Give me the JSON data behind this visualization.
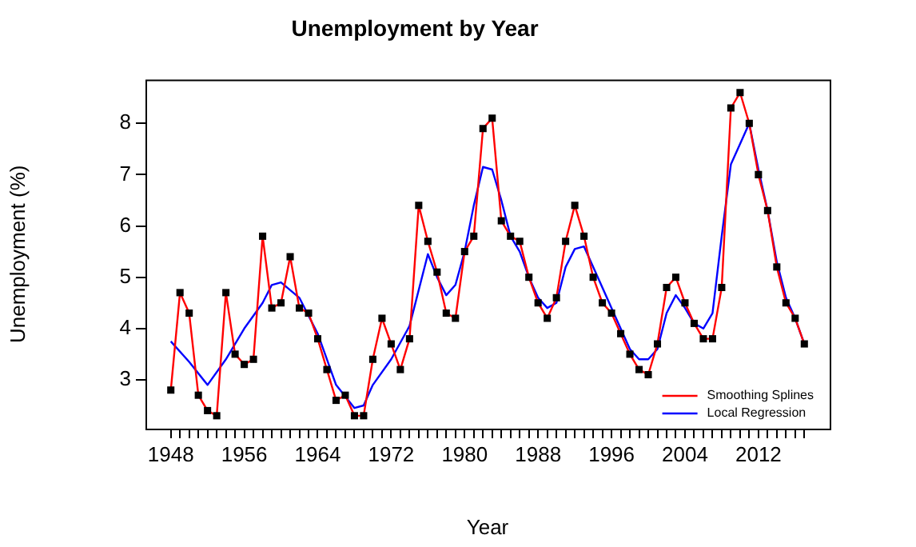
{
  "chart_data": {
    "type": "line",
    "title": "Unemployment by Year",
    "xlabel": "Year",
    "ylabel": "Unemployment (%)",
    "x": [
      1948,
      1949,
      1950,
      1951,
      1952,
      1953,
      1954,
      1955,
      1956,
      1957,
      1958,
      1959,
      1960,
      1961,
      1962,
      1963,
      1964,
      1965,
      1966,
      1967,
      1968,
      1969,
      1970,
      1971,
      1972,
      1973,
      1974,
      1975,
      1976,
      1977,
      1978,
      1979,
      1980,
      1981,
      1982,
      1983,
      1984,
      1985,
      1986,
      1987,
      1988,
      1989,
      1990,
      1991,
      1992,
      1993,
      1994,
      1995,
      1996,
      1997,
      1998,
      1999,
      2000,
      2001,
      2002,
      2003,
      2004,
      2005,
      2006,
      2007,
      2008,
      2009,
      2010,
      2011,
      2012,
      2013,
      2014,
      2015,
      2016,
      2017
    ],
    "series": [
      {
        "type": "scatter",
        "color": "#000000",
        "marker": "square",
        "values": [
          2.8,
          4.7,
          4.3,
          2.7,
          2.4,
          2.3,
          4.7,
          3.5,
          3.3,
          3.4,
          5.8,
          4.4,
          4.5,
          5.4,
          4.4,
          4.3,
          3.8,
          3.2,
          2.6,
          2.7,
          2.3,
          2.3,
          3.4,
          4.2,
          3.7,
          3.2,
          3.8,
          6.4,
          5.7,
          5.1,
          4.3,
          4.2,
          5.5,
          5.8,
          7.9,
          8.1,
          6.1,
          5.8,
          5.7,
          5.0,
          4.5,
          4.2,
          4.6,
          5.7,
          6.4,
          5.8,
          5.0,
          4.5,
          4.3,
          3.9,
          3.5,
          3.2,
          3.1,
          3.7,
          4.8,
          5.0,
          4.5,
          4.1,
          3.8,
          3.8,
          4.8,
          8.3,
          8.6,
          8.0,
          7.0,
          6.3,
          5.2,
          4.5,
          4.2,
          3.7
        ]
      },
      {
        "name": "Smoothing Splines",
        "type": "line",
        "color": "#ff0000",
        "values": [
          2.8,
          4.7,
          4.3,
          2.7,
          2.4,
          2.3,
          4.7,
          3.5,
          3.3,
          3.4,
          5.8,
          4.4,
          4.5,
          5.4,
          4.4,
          4.3,
          3.8,
          3.2,
          2.6,
          2.7,
          2.3,
          2.3,
          3.4,
          4.2,
          3.7,
          3.2,
          3.8,
          6.4,
          5.7,
          5.1,
          4.3,
          4.2,
          5.5,
          5.8,
          7.9,
          8.1,
          6.1,
          5.8,
          5.7,
          5.0,
          4.5,
          4.2,
          4.6,
          5.7,
          6.4,
          5.8,
          5.0,
          4.5,
          4.3,
          3.9,
          3.5,
          3.2,
          3.1,
          3.7,
          4.8,
          5.0,
          4.5,
          4.1,
          3.8,
          3.8,
          4.8,
          8.3,
          8.6,
          8.0,
          7.0,
          6.3,
          5.2,
          4.5,
          4.2,
          3.7
        ]
      },
      {
        "name": "Local Regression",
        "type": "line",
        "color": "#0000ff",
        "x": [
          1948,
          1950,
          1952,
          1954,
          1956,
          1958,
          1959,
          1960,
          1962,
          1964,
          1966,
          1968,
          1969,
          1970,
          1972,
          1974,
          1976,
          1977,
          1978,
          1979,
          1980,
          1981,
          1982,
          1983,
          1984,
          1985,
          1986,
          1987,
          1988,
          1989,
          1990,
          1991,
          1992,
          1993,
          1994,
          1996,
          1998,
          1999,
          2000,
          2001,
          2002,
          2003,
          2004,
          2005,
          2006,
          2007,
          2008,
          2009,
          2010,
          2011,
          2012,
          2013,
          2014,
          2015,
          2016,
          2017
        ],
        "values": [
          3.75,
          3.35,
          2.9,
          3.4,
          4.0,
          4.5,
          4.85,
          4.9,
          4.6,
          3.9,
          2.9,
          2.45,
          2.5,
          2.9,
          3.4,
          4.05,
          5.45,
          5.0,
          4.65,
          4.85,
          5.5,
          6.4,
          7.15,
          7.1,
          6.5,
          5.8,
          5.5,
          5.0,
          4.6,
          4.4,
          4.5,
          5.2,
          5.55,
          5.6,
          5.2,
          4.4,
          3.6,
          3.4,
          3.4,
          3.6,
          4.3,
          4.65,
          4.4,
          4.1,
          4.0,
          4.3,
          5.8,
          7.2,
          7.6,
          8.0,
          7.1,
          6.3,
          5.3,
          4.6,
          4.2,
          3.7
        ]
      }
    ],
    "xlim": [
      1945.24,
      2019.76
    ],
    "ylim": [
      2.048,
      8.852
    ],
    "xticks": [
      1948,
      {
        "value": 1949,
        "label": null
      },
      {
        "value": 1950,
        "label": null
      },
      {
        "value": 1951,
        "label": null
      },
      {
        "value": 1952,
        "label": null
      },
      {
        "value": 1953,
        "label": null
      },
      {
        "value": 1954,
        "label": null
      },
      {
        "value": 1955,
        "label": null
      },
      1956,
      {
        "value": 1957,
        "label": null
      },
      {
        "value": 1958,
        "label": null
      },
      {
        "value": 1959,
        "label": null
      },
      {
        "value": 1960,
        "label": null
      },
      {
        "value": 1961,
        "label": null
      },
      {
        "value": 1962,
        "label": null
      },
      {
        "value": 1963,
        "label": null
      },
      1964,
      {
        "value": 1965,
        "label": null
      },
      {
        "value": 1966,
        "label": null
      },
      {
        "value": 1967,
        "label": null
      },
      {
        "value": 1968,
        "label": null
      },
      {
        "value": 1969,
        "label": null
      },
      {
        "value": 1970,
        "label": null
      },
      {
        "value": 1971,
        "label": null
      },
      1972,
      {
        "value": 1973,
        "label": null
      },
      {
        "value": 1974,
        "label": null
      },
      {
        "value": 1975,
        "label": null
      },
      {
        "value": 1976,
        "label": null
      },
      {
        "value": 1977,
        "label": null
      },
      {
        "value": 1978,
        "label": null
      },
      {
        "value": 1979,
        "label": null
      },
      1980,
      {
        "value": 1981,
        "label": null
      },
      {
        "value": 1982,
        "label": null
      },
      {
        "value": 1983,
        "label": null
      },
      {
        "value": 1984,
        "label": null
      },
      {
        "value": 1985,
        "label": null
      },
      {
        "value": 1986,
        "label": null
      },
      {
        "value": 1987,
        "label": null
      },
      1988,
      {
        "value": 1989,
        "label": null
      },
      {
        "value": 1990,
        "label": null
      },
      {
        "value": 1991,
        "label": null
      },
      {
        "value": 1992,
        "label": null
      },
      {
        "value": 1993,
        "label": null
      },
      {
        "value": 1994,
        "label": null
      },
      {
        "value": 1995,
        "label": null
      },
      1996,
      {
        "value": 1997,
        "label": null
      },
      {
        "value": 1998,
        "label": null
      },
      {
        "value": 1999,
        "label": null
      },
      {
        "value": 2000,
        "label": null
      },
      {
        "value": 2001,
        "label": null
      },
      {
        "value": 2002,
        "label": null
      },
      {
        "value": 2003,
        "label": null
      },
      2004,
      {
        "value": 2005,
        "label": null
      },
      {
        "value": 2006,
        "label": null
      },
      {
        "value": 2007,
        "label": null
      },
      {
        "value": 2008,
        "label": null
      },
      {
        "value": 2009,
        "label": null
      },
      {
        "value": 2010,
        "label": null
      },
      {
        "value": 2011,
        "label": null
      },
      2012,
      {
        "value": 2013,
        "label": null
      },
      {
        "value": 2014,
        "label": null
      },
      {
        "value": 2015,
        "label": null
      },
      {
        "value": 2016,
        "label": null
      },
      {
        "value": 2017,
        "label": null
      }
    ],
    "yticks": [
      3,
      4,
      5,
      6,
      7,
      8
    ],
    "grid": false,
    "legend": "bottom right"
  }
}
